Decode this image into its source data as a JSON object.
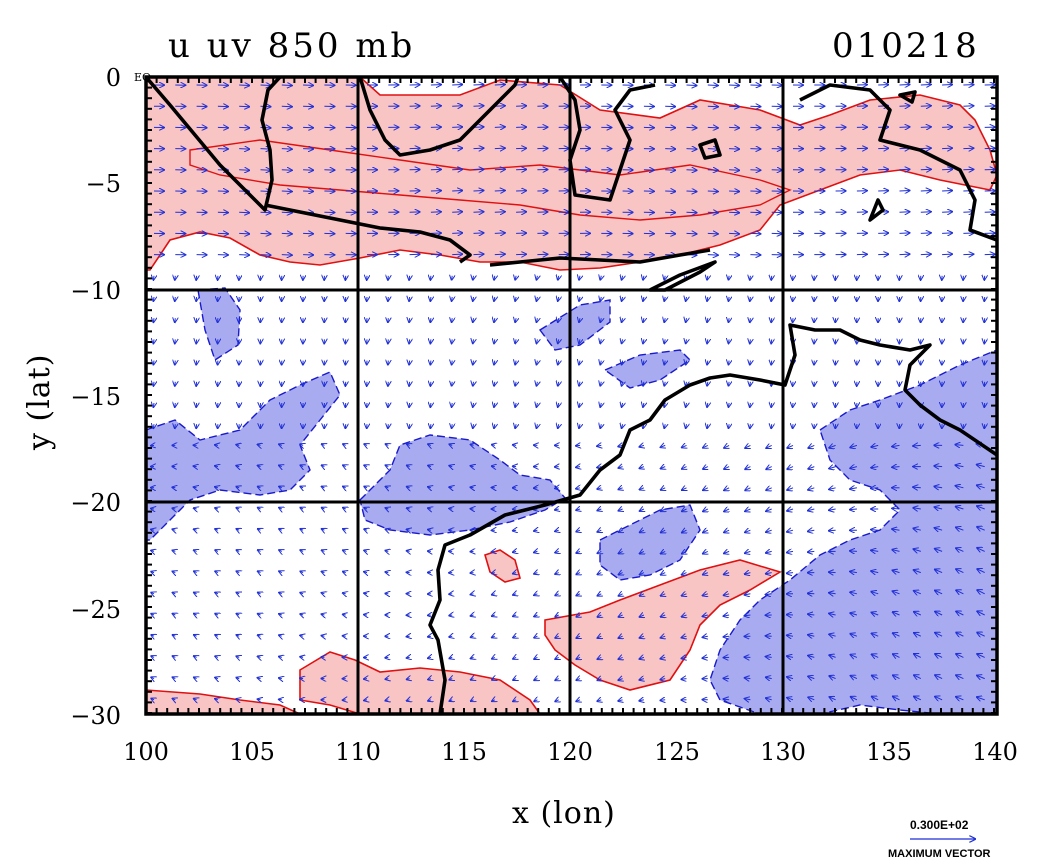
{
  "title": {
    "left": "u uv 850 mb",
    "right": "010218"
  },
  "axes": {
    "xlabel": "x (lon)",
    "ylabel": "y (lat)",
    "xticks": [
      "100",
      "105",
      "110",
      "115",
      "120",
      "125",
      "130",
      "135",
      "140"
    ],
    "yticks": [
      "0",
      "−5",
      "−10",
      "−15",
      "−20",
      "−25",
      "−30"
    ],
    "xlim": [
      100,
      140
    ],
    "ylim": [
      -30,
      0
    ],
    "grid_lon": [
      110,
      120,
      130
    ],
    "grid_lat": [
      -10,
      -20
    ],
    "equator_label": "EQ"
  },
  "legend": {
    "max_vector_value": "0.300E+02",
    "max_vector_label": "MAXIMUM VECTOR"
  },
  "colors": {
    "positive_fill": "#f9c4c4",
    "positive_contour": "#e01010",
    "negative_fill": "#a9abf0",
    "negative_contour": "#1a1acc",
    "vectors": "#1f2fd6",
    "coastline": "#000000",
    "gridlines": "#000000"
  },
  "fields": {
    "positive_regions_note": "westerly u (shaded red) across 0°–10°S and small patches near 25°–30°S",
    "negative_regions_note": "easterly u (shaded blue) over 12°–30°S"
  }
}
